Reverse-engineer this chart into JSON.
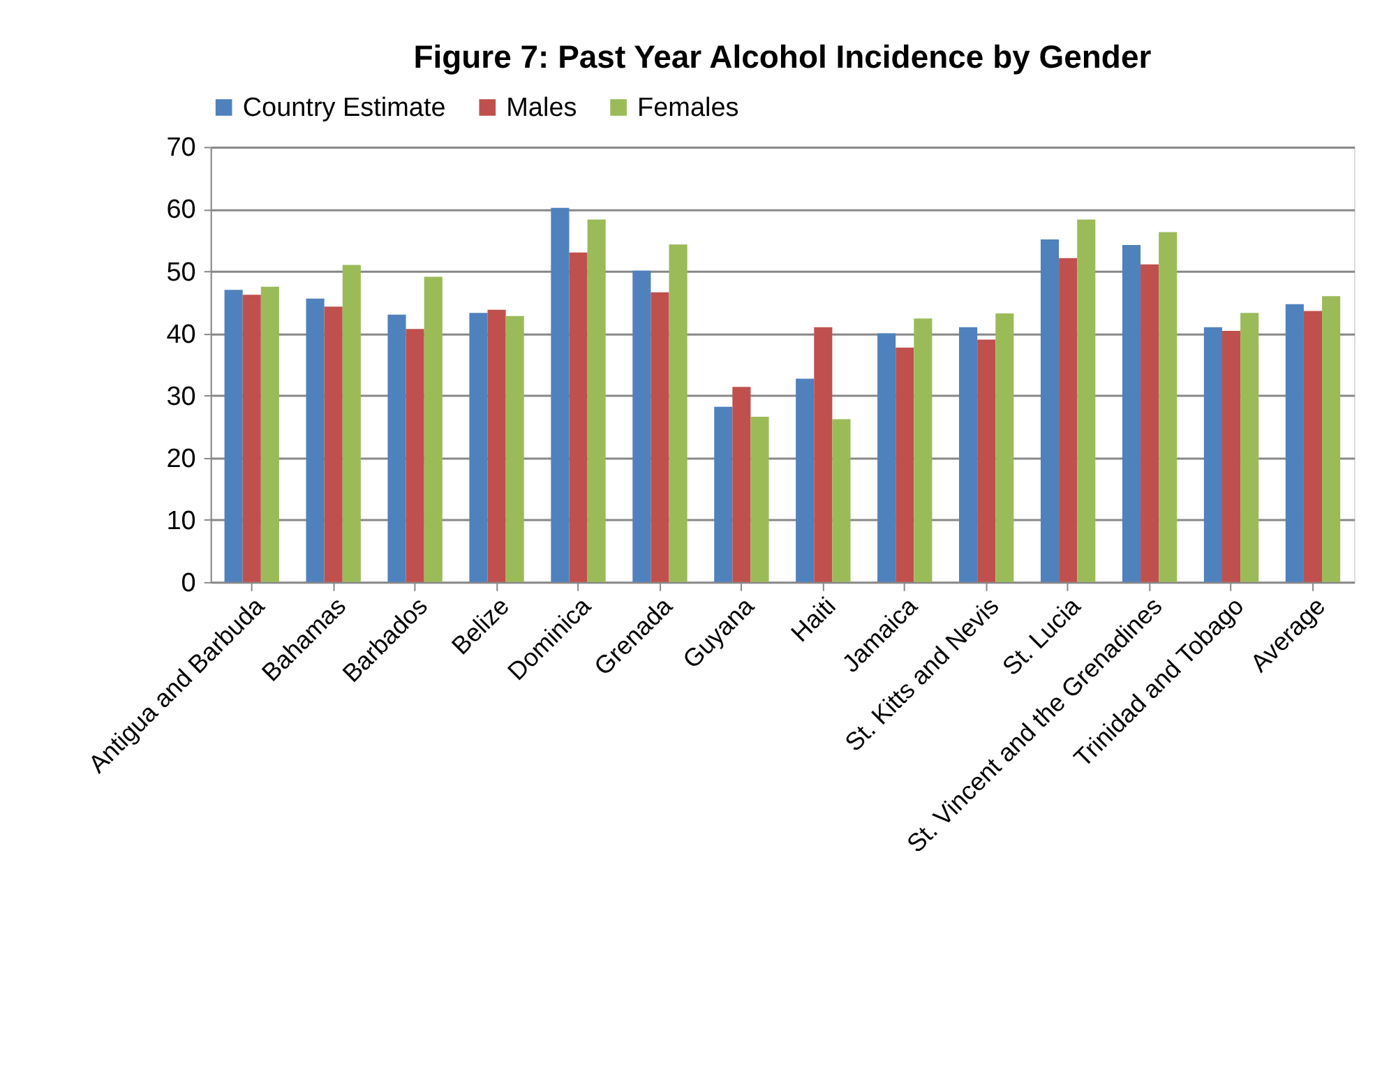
{
  "chart_data": {
    "type": "bar",
    "title": "Figure 7: Past Year Alcohol Incidence by Gender",
    "categories": [
      "Antigua and Barbuda",
      "Bahamas",
      "Barbados",
      "Belize",
      "Dominica",
      "Grenada",
      "Guyana",
      "Haiti",
      "Jamaica",
      "St. Kitts and Nevis",
      "St. Lucia",
      "St. Vincent and the Grenadines",
      "Trinidad and Tobago",
      "Average"
    ],
    "series": [
      {
        "name": "Country Estimate",
        "color": "#4f81bd",
        "values": [
          47.0,
          45.6,
          43.0,
          43.3,
          60.2,
          50.1,
          28.2,
          32.7,
          40.0,
          41.0,
          55.1,
          54.2,
          41.0,
          44.7
        ]
      },
      {
        "name": "Males",
        "color": "#c0504d",
        "values": [
          46.2,
          44.3,
          40.7,
          43.8,
          53.0,
          46.6,
          31.4,
          41.0,
          37.7,
          39.0,
          52.1,
          51.1,
          40.4,
          43.6
        ]
      },
      {
        "name": "Females",
        "color": "#9bbb59",
        "values": [
          47.5,
          51.0,
          49.1,
          42.8,
          58.3,
          54.3,
          26.6,
          26.2,
          42.4,
          43.2,
          58.3,
          56.3,
          43.3,
          46.0
        ]
      }
    ],
    "ylim": [
      0,
      70
    ],
    "yticks": [
      0,
      10,
      20,
      30,
      40,
      50,
      60,
      70
    ],
    "grid": "y",
    "legend": "top"
  }
}
